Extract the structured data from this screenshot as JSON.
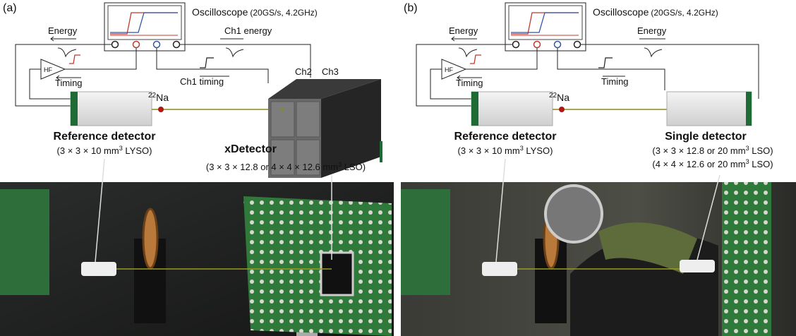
{
  "panels": [
    {
      "label": "(a)",
      "oscilloscope": {
        "name": "Oscilloscope",
        "spec": "(20GS/s, 4.2GHz)"
      },
      "signals": {
        "energy_left": "Energy",
        "energy_right": "Ch1 energy",
        "timing_left": "Timing",
        "timing_right": "Ch1 timing",
        "amplifier": "HF"
      },
      "channels": [
        "Ch2",
        "Ch3"
      ],
      "source": {
        "mass": "22",
        "element": "Na"
      },
      "reference": {
        "name": "Reference detector",
        "spec": {
          "before": "(3 × 3 × 10 mm",
          "sup": "3",
          "after": " LYSO)"
        }
      },
      "detector": {
        "name": "xDetector",
        "specs": [
          {
            "before": "(3 × 3 × 12.8 or 4 × 4 × 12.6 mm",
            "sup": "3",
            "after": " LSO)"
          }
        ]
      }
    },
    {
      "label": "(b)",
      "oscilloscope": {
        "name": "Oscilloscope",
        "spec": "(20GS/s, 4.2GHz)"
      },
      "signals": {
        "energy_left": "Energy",
        "energy_right": "Energy",
        "timing_left": "Timing",
        "timing_right": "Timing",
        "amplifier": "HF"
      },
      "source": {
        "mass": "22",
        "element": "Na"
      },
      "reference": {
        "name": "Reference detector",
        "spec": {
          "before": "(3 × 3 × 10 mm",
          "sup": "3",
          "after": " LYSO)"
        }
      },
      "detector": {
        "name": "Single detector",
        "specs": [
          {
            "before": "(3 × 3 × 12.8 or 20 mm",
            "sup": "3",
            "after": " LSO)"
          },
          {
            "before": "(4 × 4 × 12.6 or 20 mm",
            "sup": "3",
            "after": " LSO)"
          }
        ]
      }
    }
  ]
}
